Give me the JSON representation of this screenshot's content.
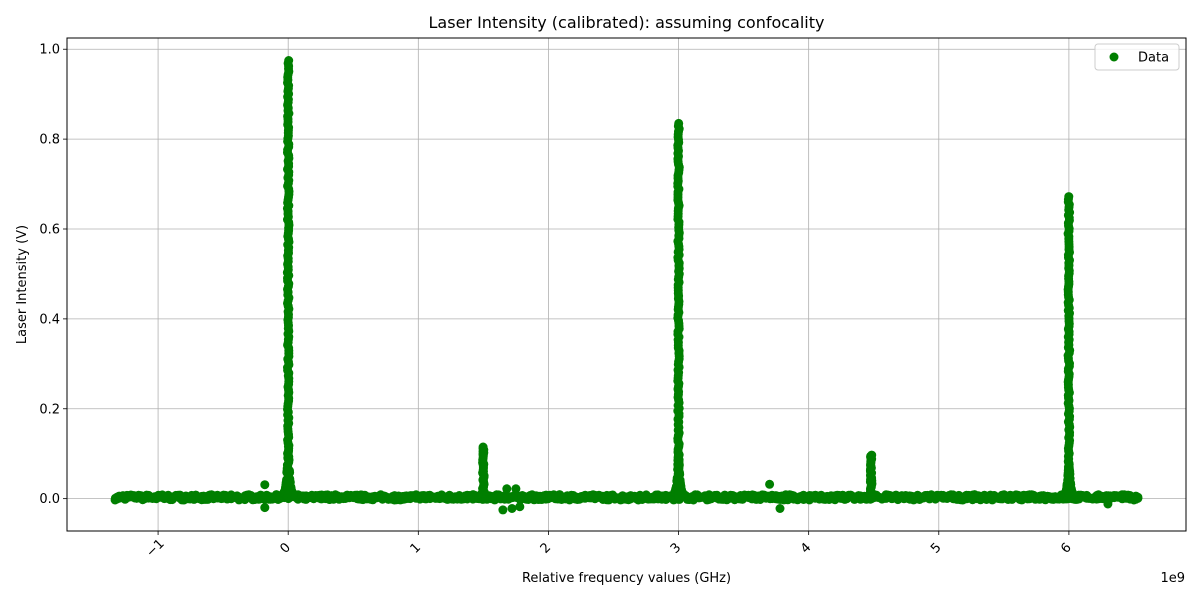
{
  "chart_data": {
    "type": "scatter",
    "title": "Laser Intensity (calibrated): assuming confocality",
    "xlabel": "Relative frequency values (GHz)",
    "ylabel": "Laser Intensity (V)",
    "x_offset_label": "1e9",
    "xlim": [
      -1700000000.0,
      6900000000.0
    ],
    "ylim": [
      -0.072,
      1.025
    ],
    "x_ticks": [
      -1000000000.0,
      0,
      1000000000.0,
      2000000000.0,
      3000000000.0,
      4000000000.0,
      5000000000.0,
      6000000000.0
    ],
    "x_tick_labels": [
      "−1",
      "0",
      "1",
      "2",
      "3",
      "4",
      "5",
      "6"
    ],
    "y_ticks": [
      0.0,
      0.2,
      0.4,
      0.6,
      0.8,
      1.0
    ],
    "y_tick_labels": [
      "0.0",
      "0.2",
      "0.4",
      "0.6",
      "0.8",
      "1.0"
    ],
    "grid": true,
    "legend": {
      "position": "top-right",
      "entries": [
        "Data"
      ]
    },
    "series": [
      {
        "name": "Data",
        "color": "#007f00",
        "x_range": [
          -1330000000.0,
          6530000000.0
        ],
        "baseline": 0.003,
        "peaks": [
          {
            "x": 0.0,
            "height": 0.975
          },
          {
            "x": 1500000000.0,
            "height": 0.115
          },
          {
            "x": 3000000000.0,
            "height": 0.835
          },
          {
            "x": 4480000000.0,
            "height": 0.097
          },
          {
            "x": 6000000000.0,
            "height": 0.672
          }
        ],
        "outliers": [
          {
            "x": -180000000.0,
            "y": 0.031
          },
          {
            "x": -180000000.0,
            "y": -0.02
          },
          {
            "x": 1650000000.0,
            "y": -0.025
          },
          {
            "x": 1680000000.0,
            "y": 0.022
          },
          {
            "x": 1720000000.0,
            "y": -0.022
          },
          {
            "x": 1750000000.0,
            "y": 0.022
          },
          {
            "x": 1780000000.0,
            "y": -0.018
          },
          {
            "x": 3700000000.0,
            "y": 0.032
          },
          {
            "x": 3780000000.0,
            "y": -0.022
          },
          {
            "x": 6300000000.0,
            "y": -0.012
          }
        ]
      }
    ]
  }
}
